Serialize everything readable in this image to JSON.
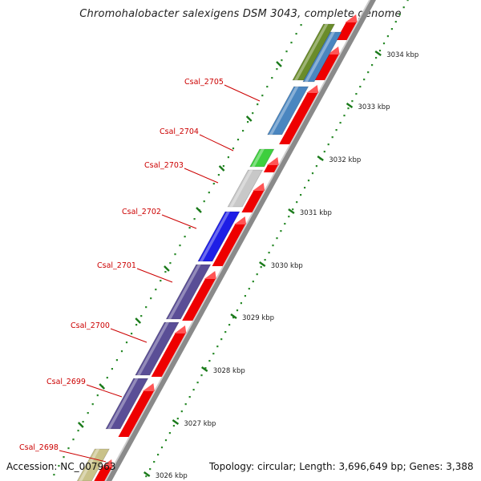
{
  "title": "Chromohalobacter salexigens DSM 3043, complete genome",
  "footer": {
    "accession": "Accession: NC_007963",
    "topology": "Topology: circular; Length: 3,696,649 bp; Genes: 3,388"
  },
  "scale": {
    "unit": "kbp",
    "ticks": [
      "3026 kbp",
      "3027 kbp",
      "3028 kbp",
      "3029 kbp",
      "3030 kbp",
      "3031 kbp",
      "3032 kbp",
      "3033 kbp",
      "3034 kbp"
    ]
  },
  "genes": [
    {
      "id": "g2698",
      "label": "Csal_2698",
      "color": "#c9c28a"
    },
    {
      "id": "g2699",
      "label": "Csal_2699",
      "color": "#5a4e96"
    },
    {
      "id": "g2700",
      "label": "Csal_2700",
      "color": "#5a4e96"
    },
    {
      "id": "g2701",
      "label": "Csal_2701",
      "color": "#5a4e96"
    },
    {
      "id": "g2702",
      "label": "Csal_2702",
      "color": "#1e1ee6"
    },
    {
      "id": "g2703",
      "label": "Csal_2703",
      "color": "#c8c8c8"
    },
    {
      "id": "g2704",
      "label": "Csal_2704",
      "color": "#3ecf3e"
    },
    {
      "id": "g2705",
      "label": "Csal_2705",
      "color": "#4a86c0"
    },
    {
      "id": "g2706",
      "label": "",
      "color": "#6a8c2a"
    },
    {
      "id": "g2707",
      "label": "",
      "color": "#4a86c0"
    }
  ],
  "colors": {
    "label_text": "#cc0000",
    "feature_red": "#ee0000",
    "axis_gray": "#8a8a8a",
    "tick_green": "#1a7a1a"
  }
}
